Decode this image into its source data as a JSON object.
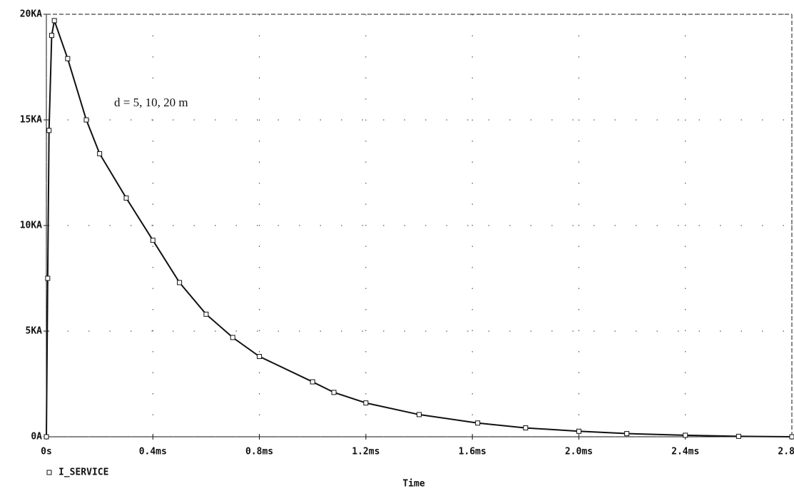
{
  "chart_data": {
    "type": "line",
    "x_label": "Time",
    "annotation": "d = 5, 10, 20 m",
    "x": [
      0,
      0.005,
      0.01,
      0.02,
      0.03,
      0.08,
      0.15,
      0.2,
      0.3,
      0.4,
      0.5,
      0.6,
      0.7,
      0.8,
      1.0,
      1.08,
      1.2,
      1.4,
      1.62,
      1.8,
      2.0,
      2.18,
      2.4,
      2.6,
      2.8
    ],
    "series": [
      {
        "name": "I_SERVICE",
        "color": "#111111",
        "values": [
          0,
          7500,
          14500,
          19000,
          19700,
          17900,
          15000,
          13400,
          11300,
          9300,
          7300,
          5800,
          4700,
          3800,
          2600,
          2100,
          1600,
          1050,
          650,
          420,
          260,
          150,
          70,
          20,
          0
        ]
      }
    ],
    "xlim": [
      0,
      2.8
    ],
    "xticks": [
      {
        "value": 0,
        "label": "0s"
      },
      {
        "value": 0.4,
        "label": "0.4ms"
      },
      {
        "value": 0.8,
        "label": "0.8ms"
      },
      {
        "value": 1.2,
        "label": "1.2ms"
      },
      {
        "value": 1.6,
        "label": "1.6ms"
      },
      {
        "value": 2.0,
        "label": "2.0ms"
      },
      {
        "value": 2.4,
        "label": "2.4ms"
      },
      {
        "value": 2.8,
        "label": "2.8ms"
      }
    ],
    "ylim": [
      0,
      20000
    ],
    "yticks": [
      {
        "value": 0,
        "label": "0A"
      },
      {
        "value": 5000,
        "label": "5KA"
      },
      {
        "value": 10000,
        "label": "10KA"
      },
      {
        "value": 15000,
        "label": "15KA"
      },
      {
        "value": 20000,
        "label": "20KA"
      }
    ],
    "grid": true,
    "markers": true
  }
}
